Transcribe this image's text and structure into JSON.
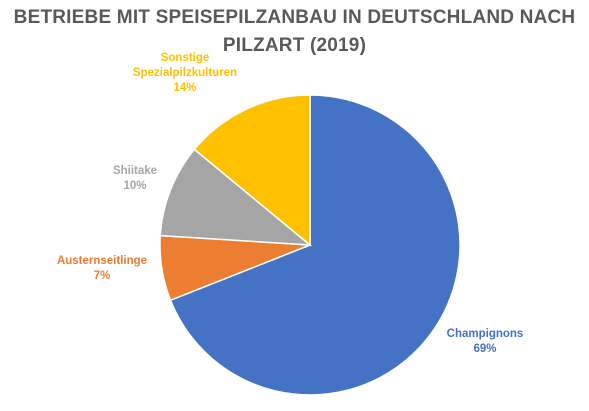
{
  "chart_data": {
    "type": "pie",
    "title_lines": [
      "BETRIEBE MIT SPEISEPILZANBAU IN DEUTSCHLAND NACH",
      "PILZART (2019)"
    ],
    "slices": [
      {
        "name": "Champignons",
        "value": 69,
        "label": "69%",
        "color": "#4472C4"
      },
      {
        "name": "Austernseitlinge",
        "value": 7,
        "label": "7%",
        "color": "#ED7D31"
      },
      {
        "name": "Shiitake",
        "value": 10,
        "label": "10%",
        "color": "#A5A5A5"
      },
      {
        "name_lines": [
          "Sonstige",
          "Spezialpilzkulturen"
        ],
        "value": 14,
        "label": "14%",
        "color": "#FFC000"
      }
    ],
    "start_angle": "12 o'clock",
    "direction": "clockwise",
    "legend": "none"
  }
}
